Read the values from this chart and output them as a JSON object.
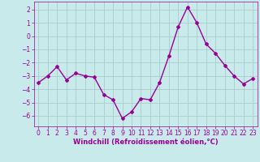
{
  "x": [
    0,
    1,
    2,
    3,
    4,
    5,
    6,
    7,
    8,
    9,
    10,
    11,
    12,
    13,
    14,
    15,
    16,
    17,
    18,
    19,
    20,
    21,
    22,
    23
  ],
  "y": [
    -3.5,
    -3.0,
    -2.3,
    -3.3,
    -2.8,
    -3.0,
    -3.1,
    -4.4,
    -4.8,
    -6.2,
    -5.7,
    -4.7,
    -4.8,
    -3.5,
    -1.5,
    0.7,
    2.2,
    1.0,
    -0.6,
    -1.3,
    -2.2,
    -3.0,
    -3.6,
    -3.2
  ],
  "line_color": "#990099",
  "marker": "D",
  "marker_size": 2.0,
  "linewidth": 1.0,
  "bg_color": "#c8eaea",
  "grid_color": "#aacccc",
  "xlabel": "Windchill (Refroidissement éolien,°C)",
  "xlabel_fontsize": 6.0,
  "tick_fontsize": 5.5,
  "ylim": [
    -6.8,
    2.6
  ],
  "yticks": [
    -6,
    -5,
    -4,
    -3,
    -2,
    -1,
    0,
    1,
    2
  ],
  "xlim": [
    -0.5,
    23.5
  ],
  "xticks": [
    0,
    1,
    2,
    3,
    4,
    5,
    6,
    7,
    8,
    9,
    10,
    11,
    12,
    13,
    14,
    15,
    16,
    17,
    18,
    19,
    20,
    21,
    22,
    23
  ]
}
